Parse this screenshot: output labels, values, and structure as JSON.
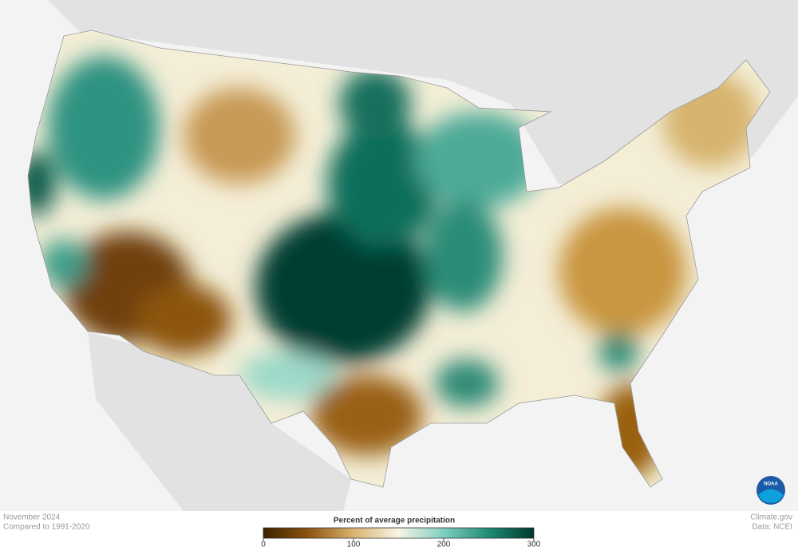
{
  "map": {
    "legend": {
      "title": "Percent of average precipitation",
      "range": [
        0,
        300
      ],
      "ticks": [
        0,
        100,
        200,
        300
      ],
      "colors": [
        "#3d2200",
        "#8c5410",
        "#d9b470",
        "#f7f4e6",
        "#7fcfbf",
        "#1f8a74",
        "#00382c"
      ]
    }
  },
  "footer": {
    "date": "November 2024",
    "baseline": "Compared to 1991-2020",
    "source": "Climate.gov",
    "credit": "Data: NCEI"
  },
  "logo": "NOAA"
}
